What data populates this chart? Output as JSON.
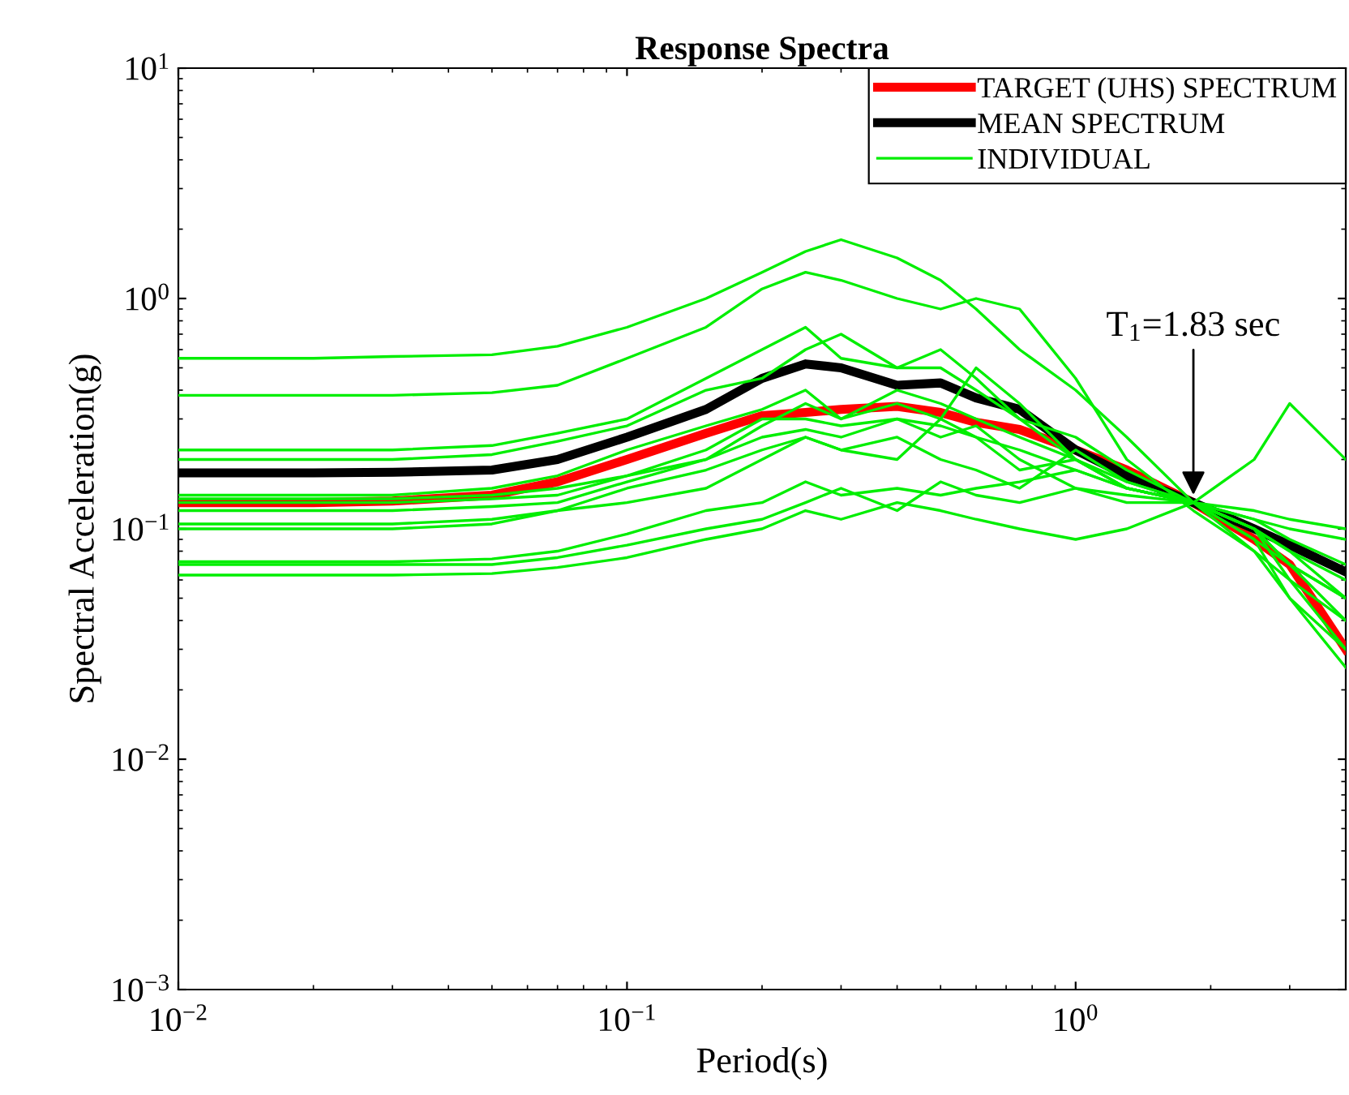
{
  "chart_data": {
    "type": "line",
    "title": "Response Spectra",
    "xlabel": "Period(s)",
    "ylabel": "Spectral Acceleration(g)",
    "log": "xy",
    "xlim": [
      0.01,
      4
    ],
    "ylim": [
      0.001,
      10
    ],
    "xticks": [
      {
        "value": 0.01,
        "label": "10$^{−2}$"
      },
      {
        "value": 0.1,
        "label": "10$^{−1}$"
      },
      {
        "value": 1,
        "label": "10$^{0}$"
      }
    ],
    "yticks": [
      {
        "value": 0.001,
        "label": "10$^{−3}$"
      },
      {
        "value": 0.01,
        "label": "10$^{−2}$"
      },
      {
        "value": 0.1,
        "label": "10$^{−1}$"
      },
      {
        "value": 1,
        "label": "10$^{0}$"
      },
      {
        "value": 10,
        "label": "10$^{1}$"
      }
    ],
    "grid": false,
    "legend": "top right",
    "marker": "none",
    "line_style": "solid",
    "x": [
      0.01,
      0.02,
      0.03,
      0.05,
      0.07,
      0.1,
      0.15,
      0.2,
      0.25,
      0.3,
      0.4,
      0.5,
      0.6,
      0.75,
      1.0,
      1.3,
      1.83,
      2.5,
      3,
      4
    ],
    "annotations": [
      {
        "text": "T$_{1}$=1.83 sec",
        "x": 1.83,
        "y": 0.13
      }
    ],
    "series": [
      {
        "name": "TARGET (UHS) SPECTRUM",
        "color": "#ff0000",
        "values": [
          0.13,
          0.13,
          0.132,
          0.14,
          0.16,
          0.2,
          0.26,
          0.31,
          0.32,
          0.33,
          0.34,
          0.32,
          0.29,
          0.27,
          0.22,
          0.18,
          0.13,
          0.09,
          0.07,
          0.03
        ]
      },
      {
        "name": "MEAN SPECTRUM",
        "color": "#000000",
        "values": [
          0.175,
          0.175,
          0.176,
          0.18,
          0.2,
          0.25,
          0.33,
          0.45,
          0.52,
          0.5,
          0.42,
          0.43,
          0.37,
          0.33,
          0.22,
          0.17,
          0.13,
          0.1,
          0.085,
          0.065
        ]
      },
      {
        "name": "INDIVIDUAL",
        "color": "#00ee00",
        "values": [
          0.55,
          0.55,
          0.56,
          0.57,
          0.62,
          0.75,
          1.0,
          1.3,
          1.6,
          1.8,
          1.5,
          1.2,
          0.9,
          0.6,
          0.4,
          0.25,
          0.13,
          0.09,
          0.07,
          0.05
        ]
      },
      {
        "color": "#00ee00",
        "values": [
          0.38,
          0.38,
          0.38,
          0.39,
          0.42,
          0.55,
          0.75,
          1.1,
          1.3,
          1.2,
          1.0,
          0.9,
          1.0,
          0.9,
          0.45,
          0.2,
          0.12,
          0.08,
          0.06,
          0.04
        ]
      },
      {
        "color": "#00ee00",
        "values": [
          0.22,
          0.22,
          0.22,
          0.23,
          0.26,
          0.3,
          0.45,
          0.6,
          0.75,
          0.55,
          0.5,
          0.6,
          0.45,
          0.3,
          0.25,
          0.18,
          0.13,
          0.1,
          0.07,
          0.05
        ]
      },
      {
        "color": "#00ee00",
        "values": [
          0.2,
          0.2,
          0.2,
          0.21,
          0.24,
          0.28,
          0.4,
          0.45,
          0.6,
          0.7,
          0.5,
          0.5,
          0.4,
          0.3,
          0.2,
          0.15,
          0.13,
          0.2,
          0.35,
          0.2
        ]
      },
      {
        "color": "#00ee00",
        "values": [
          0.14,
          0.14,
          0.14,
          0.15,
          0.17,
          0.22,
          0.28,
          0.33,
          0.4,
          0.3,
          0.35,
          0.3,
          0.5,
          0.35,
          0.2,
          0.15,
          0.13,
          0.11,
          0.1,
          0.09
        ]
      },
      {
        "color": "#00ee00",
        "values": [
          0.13,
          0.13,
          0.13,
          0.135,
          0.14,
          0.17,
          0.2,
          0.28,
          0.35,
          0.3,
          0.4,
          0.35,
          0.3,
          0.25,
          0.2,
          0.15,
          0.13,
          0.1,
          0.08,
          0.05
        ]
      },
      {
        "color": "#00ee00",
        "values": [
          0.135,
          0.135,
          0.135,
          0.14,
          0.15,
          0.17,
          0.22,
          0.3,
          0.3,
          0.28,
          0.3,
          0.28,
          0.25,
          0.22,
          0.18,
          0.15,
          0.13,
          0.11,
          0.09,
          0.07
        ]
      },
      {
        "color": "#00ee00",
        "values": [
          0.12,
          0.12,
          0.12,
          0.125,
          0.13,
          0.16,
          0.2,
          0.25,
          0.27,
          0.25,
          0.3,
          0.25,
          0.28,
          0.2,
          0.15,
          0.13,
          0.13,
          0.1,
          0.07,
          0.04
        ]
      },
      {
        "color": "#00ee00",
        "values": [
          0.105,
          0.105,
          0.105,
          0.11,
          0.12,
          0.15,
          0.18,
          0.22,
          0.25,
          0.22,
          0.2,
          0.3,
          0.25,
          0.18,
          0.2,
          0.16,
          0.13,
          0.1,
          0.06,
          0.03
        ]
      },
      {
        "color": "#00ee00",
        "values": [
          0.1,
          0.1,
          0.1,
          0.105,
          0.12,
          0.13,
          0.15,
          0.2,
          0.25,
          0.22,
          0.25,
          0.2,
          0.18,
          0.15,
          0.22,
          0.16,
          0.13,
          0.09,
          0.05,
          0.03
        ]
      },
      {
        "color": "#00ee00",
        "values": [
          0.072,
          0.072,
          0.072,
          0.074,
          0.08,
          0.095,
          0.12,
          0.13,
          0.16,
          0.14,
          0.15,
          0.14,
          0.15,
          0.16,
          0.18,
          0.15,
          0.13,
          0.12,
          0.11,
          0.1
        ]
      },
      {
        "color": "#00ee00",
        "values": [
          0.07,
          0.07,
          0.07,
          0.07,
          0.075,
          0.085,
          0.1,
          0.11,
          0.13,
          0.15,
          0.12,
          0.16,
          0.14,
          0.13,
          0.15,
          0.14,
          0.13,
          0.1,
          0.08,
          0.06
        ]
      },
      {
        "color": "#00ee00",
        "values": [
          0.063,
          0.063,
          0.063,
          0.064,
          0.068,
          0.075,
          0.09,
          0.1,
          0.12,
          0.11,
          0.13,
          0.12,
          0.11,
          0.1,
          0.09,
          0.1,
          0.13,
          0.08,
          0.05,
          0.025
        ]
      }
    ]
  }
}
